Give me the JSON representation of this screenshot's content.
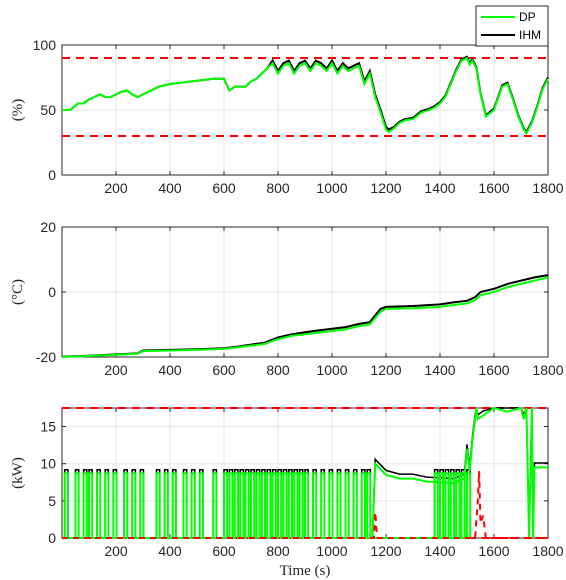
{
  "chart_data": [
    {
      "type": "line",
      "ylabel": "(%)",
      "xlim": [
        0,
        1800
      ],
      "ylim": [
        0,
        100
      ],
      "xticks": [
        200,
        400,
        600,
        800,
        1000,
        1200,
        1400,
        1600,
        1800
      ],
      "yticks": [
        0,
        50,
        100
      ],
      "grid": true,
      "legend": {
        "position": "outside-top-right",
        "entries": [
          "DP",
          "IHM"
        ]
      },
      "limits": [
        90,
        30
      ],
      "series": [
        {
          "name": "DP",
          "color": "#00ff00",
          "x": [
            0,
            30,
            60,
            80,
            100,
            120,
            140,
            160,
            180,
            200,
            220,
            240,
            260,
            280,
            300,
            330,
            360,
            400,
            440,
            480,
            520,
            560,
            600,
            620,
            640,
            660,
            680,
            700,
            720,
            740,
            760,
            780,
            800,
            820,
            840,
            860,
            880,
            900,
            920,
            940,
            960,
            980,
            1000,
            1020,
            1040,
            1060,
            1080,
            1100,
            1120,
            1140,
            1160,
            1180,
            1200,
            1210,
            1230,
            1250,
            1270,
            1300,
            1330,
            1360,
            1380,
            1400,
            1420,
            1440,
            1460,
            1480,
            1500,
            1510,
            1520,
            1535,
            1550,
            1570,
            1600,
            1630,
            1650,
            1670,
            1690,
            1710,
            1720,
            1740,
            1760,
            1780,
            1800
          ],
          "y": [
            50,
            50,
            55,
            55,
            58,
            60,
            62,
            60,
            60,
            62,
            64,
            65,
            62,
            60,
            62,
            65,
            68,
            70,
            71,
            72,
            73,
            74,
            74,
            65,
            68,
            68,
            68,
            72,
            74,
            78,
            82,
            86,
            78,
            84,
            86,
            78,
            84,
            86,
            80,
            86,
            84,
            80,
            86,
            78,
            84,
            80,
            82,
            84,
            70,
            78,
            60,
            48,
            35,
            33,
            36,
            40,
            42,
            43,
            48,
            50,
            52,
            55,
            60,
            70,
            80,
            88,
            90,
            85,
            88,
            82,
            62,
            45,
            50,
            68,
            70,
            58,
            45,
            35,
            32,
            40,
            52,
            66,
            74
          ]
        },
        {
          "name": "IHM",
          "color": "#000000",
          "x": [
            0,
            30,
            60,
            80,
            100,
            120,
            140,
            160,
            180,
            200,
            220,
            240,
            260,
            280,
            300,
            330,
            360,
            400,
            440,
            480,
            520,
            560,
            600,
            620,
            640,
            660,
            680,
            700,
            720,
            740,
            760,
            780,
            800,
            820,
            840,
            860,
            880,
            900,
            920,
            940,
            960,
            980,
            1000,
            1020,
            1040,
            1060,
            1080,
            1100,
            1120,
            1140,
            1160,
            1180,
            1200,
            1210,
            1230,
            1250,
            1270,
            1300,
            1330,
            1360,
            1380,
            1400,
            1420,
            1440,
            1460,
            1480,
            1500,
            1510,
            1520,
            1535,
            1550,
            1570,
            1600,
            1630,
            1650,
            1670,
            1690,
            1710,
            1720,
            1740,
            1760,
            1780,
            1800
          ],
          "y": [
            50,
            50,
            55,
            55,
            58,
            60,
            62,
            60,
            60,
            62,
            64,
            65,
            62,
            60,
            62,
            65,
            68,
            70,
            71,
            72,
            73,
            74,
            74,
            65,
            68,
            68,
            68,
            72,
            74,
            78,
            82,
            88,
            80,
            86,
            88,
            80,
            86,
            88,
            82,
            88,
            86,
            82,
            88,
            80,
            86,
            82,
            84,
            86,
            72,
            80,
            62,
            50,
            37,
            35,
            37,
            41,
            43,
            44,
            49,
            51,
            53,
            56,
            61,
            71,
            81,
            89,
            91,
            86,
            89,
            83,
            63,
            46,
            51,
            69,
            71,
            59,
            46,
            36,
            33,
            41,
            53,
            67,
            75
          ]
        }
      ]
    },
    {
      "type": "line",
      "ylabel": "(°C)",
      "xlim": [
        0,
        1800
      ],
      "ylim": [
        -20,
        20
      ],
      "xticks": [
        200,
        400,
        600,
        800,
        1000,
        1200,
        1400,
        1600,
        1800
      ],
      "yticks": [
        -20,
        0,
        20
      ],
      "grid": true,
      "series": [
        {
          "name": "DP",
          "color": "#00ff00",
          "x": [
            0,
            100,
            200,
            280,
            300,
            400,
            500,
            600,
            650,
            700,
            750,
            800,
            850,
            900,
            950,
            1000,
            1050,
            1100,
            1140,
            1160,
            1180,
            1200,
            1300,
            1400,
            1450,
            1500,
            1530,
            1550,
            1600,
            1650,
            1700,
            1750,
            1800
          ],
          "y": [
            -20,
            -19.7,
            -19.3,
            -19,
            -18.2,
            -18,
            -17.8,
            -17.5,
            -17,
            -16.5,
            -16,
            -14.5,
            -13.5,
            -13,
            -12.5,
            -12,
            -11.5,
            -10.5,
            -10,
            -8,
            -6,
            -5.2,
            -5,
            -4.6,
            -4,
            -3.5,
            -2.5,
            -1,
            0,
            1.5,
            2.5,
            3.5,
            4.5
          ]
        },
        {
          "name": "IHM",
          "color": "#000000",
          "x": [
            0,
            100,
            200,
            280,
            300,
            400,
            500,
            600,
            650,
            700,
            750,
            800,
            850,
            900,
            950,
            1000,
            1050,
            1100,
            1140,
            1160,
            1180,
            1200,
            1300,
            1400,
            1450,
            1500,
            1530,
            1550,
            1600,
            1650,
            1700,
            1750,
            1800
          ],
          "y": [
            -19.9,
            -19.6,
            -19.2,
            -18.9,
            -18,
            -17.8,
            -17.6,
            -17.3,
            -16.8,
            -16.2,
            -15.6,
            -14,
            -13,
            -12.4,
            -11.8,
            -11.3,
            -10.8,
            -9.8,
            -9.3,
            -7.2,
            -5.2,
            -4.6,
            -4.3,
            -3.8,
            -3.2,
            -2.7,
            -1.6,
            0,
            1,
            2.5,
            3.5,
            4.5,
            5.2
          ]
        }
      ]
    },
    {
      "type": "line",
      "ylabel": "(kW)",
      "xlabel": "Time (s)",
      "xlim": [
        0,
        1800
      ],
      "ylim": [
        0,
        17.5
      ],
      "xticks": [
        200,
        400,
        600,
        800,
        1000,
        1200,
        1400,
        1600,
        1800
      ],
      "yticks": [
        0,
        5,
        10,
        15
      ],
      "grid": true,
      "limits": [
        17.5,
        0
      ],
      "pulses": {
        "level": 8.7,
        "starts": [
          10,
          50,
          80,
          100,
          130,
          160,
          190,
          230,
          260,
          290,
          350,
          380,
          410,
          450,
          480,
          510,
          560,
          600,
          620,
          640,
          660,
          680,
          700,
          720,
          740,
          760,
          780,
          800,
          820,
          840,
          860,
          880,
          900,
          930,
          960,
          990,
          1020,
          1050,
          1080,
          1110,
          1130,
          1380,
          1400,
          1420,
          1440,
          1460,
          1480,
          1500
        ],
        "width": 12
      },
      "series_dp_tail": {
        "x": [
          1150,
          1160,
          1200,
          1250,
          1300,
          1350,
          1400,
          1450,
          1490,
          1500,
          1510,
          1520,
          1530,
          1535,
          1540,
          1560,
          1600,
          1650,
          1700,
          1710,
          1720,
          1730,
          1740,
          1745,
          1750,
          1760,
          1800
        ],
        "y": [
          0,
          10,
          8.5,
          8,
          8,
          7.6,
          7.5,
          7.4,
          8,
          12,
          9,
          13,
          16,
          17.5,
          16,
          16.5,
          17.5,
          17,
          17.5,
          16,
          17.5,
          0,
          17.5,
          0,
          9.5,
          9.5,
          9.5
        ]
      },
      "red_dashed": {
        "x": [
          0,
          1150,
          1155,
          1160,
          1165,
          1170,
          1530,
          1540,
          1545,
          1550,
          1560,
          1570,
          1580,
          1800
        ],
        "y": [
          0,
          0,
          0,
          3.5,
          1,
          0,
          0,
          5,
          9,
          2,
          3,
          0,
          0,
          0
        ]
      }
    }
  ]
}
